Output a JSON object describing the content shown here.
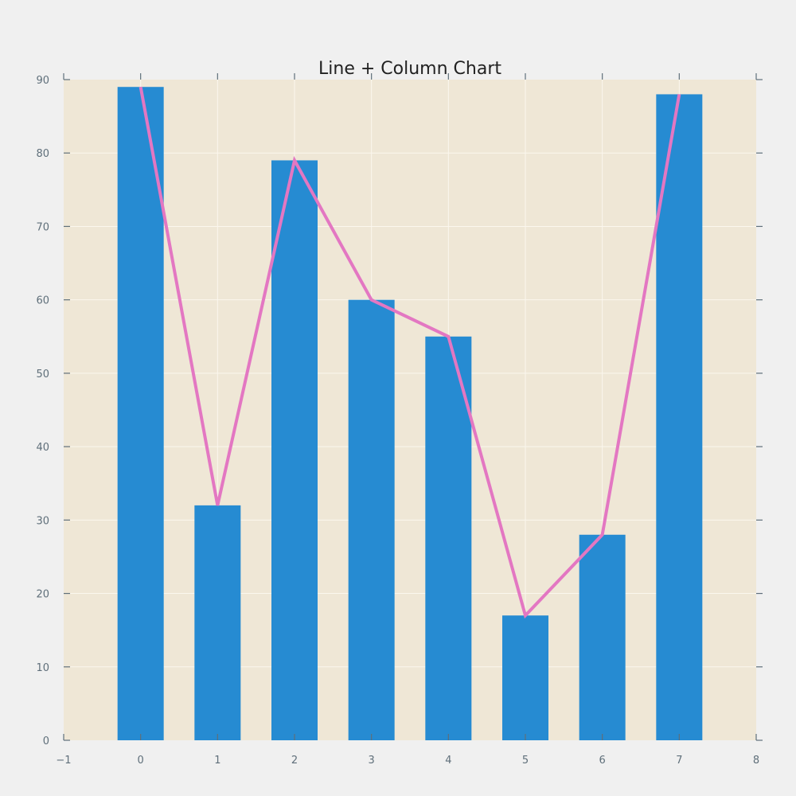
{
  "chart_data": {
    "type": "bar",
    "title": "Line + Column Chart",
    "xlabel": "",
    "ylabel": "",
    "x": [
      0,
      1,
      2,
      3,
      4,
      5,
      6,
      7
    ],
    "series": [
      {
        "kind": "bar",
        "values": [
          89,
          32,
          79,
          60,
          55,
          17,
          28,
          88
        ],
        "color": "#268bd2"
      },
      {
        "kind": "line",
        "values": [
          89,
          32,
          79,
          60,
          55,
          17,
          28,
          88
        ],
        "color": "#e377c2"
      }
    ],
    "xlim": [
      -1,
      8
    ],
    "ylim": [
      0,
      90
    ],
    "xticks": [
      -1,
      0,
      1,
      2,
      3,
      4,
      5,
      6,
      7,
      8
    ],
    "xtick_labels": [
      "−1",
      "0",
      "1",
      "2",
      "3",
      "4",
      "5",
      "6",
      "7",
      "8"
    ],
    "yticks": [
      0,
      10,
      20,
      30,
      40,
      50,
      60,
      70,
      80,
      90
    ],
    "ytick_labels": [
      "0",
      "10",
      "20",
      "30",
      "40",
      "50",
      "60",
      "70",
      "80",
      "90"
    ],
    "bar_width": 0.6,
    "grid": true,
    "legend": "none",
    "colors": {
      "plot_background": "#efe7d6",
      "page_background": "#f0f0f0",
      "grid": "#fbf7ee",
      "tick": "#5f6f7a",
      "title": "#222222"
    }
  }
}
